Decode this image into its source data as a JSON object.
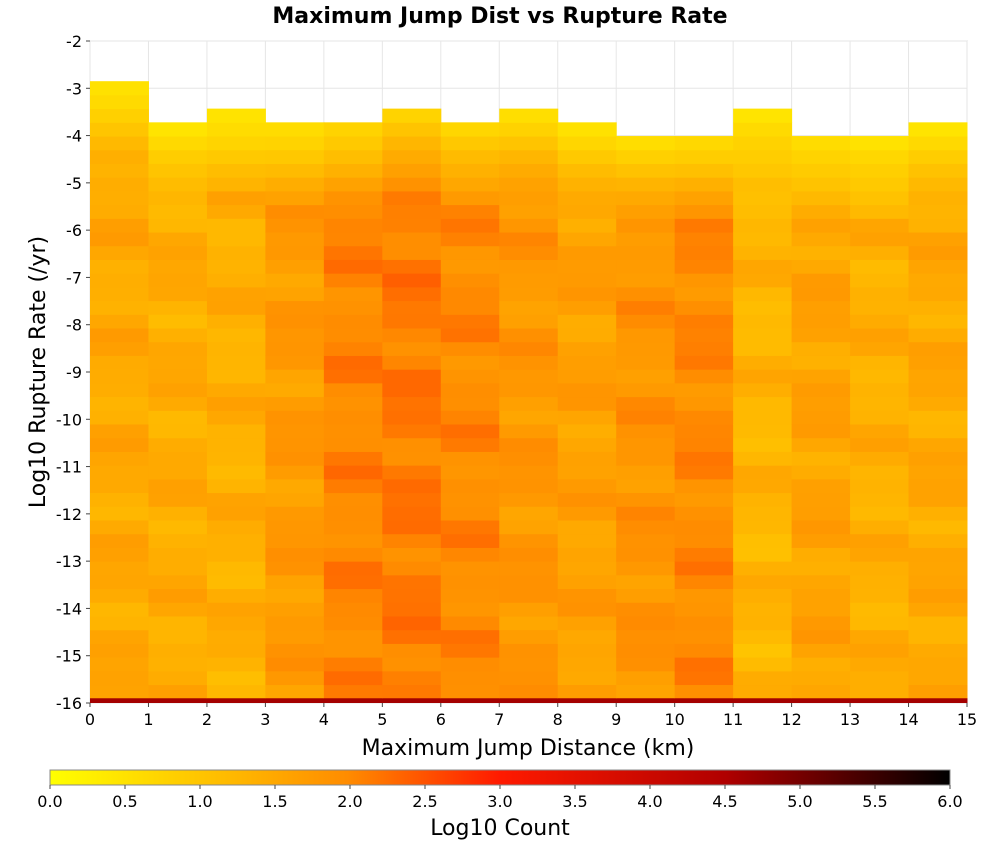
{
  "chart_data": {
    "type": "heatmap",
    "title": "Maximum Jump Dist vs Rupture Rate",
    "xlabel": "Maximum Jump Distance (km)",
    "ylabel": "Log10 Rupture Rate (/yr)",
    "xlim": [
      0,
      15
    ],
    "ylim": [
      -16,
      -2
    ],
    "x_ticks": [
      "0",
      "1",
      "2",
      "3",
      "4",
      "5",
      "6",
      "7",
      "8",
      "9",
      "10",
      "11",
      "12",
      "13",
      "14",
      "15"
    ],
    "y_ticks": [
      "-2",
      "-3",
      "-4",
      "-5",
      "-6",
      "-7",
      "-8",
      "-9",
      "-10",
      "-11",
      "-12",
      "-13",
      "-14",
      "-15",
      "-16"
    ],
    "x_bin_width": 1,
    "y_bin_start": -15.9,
    "y_bin_width": 0.29,
    "y_bins": 47,
    "column_top_bins": [
      45,
      42,
      43,
      42,
      42,
      43,
      42,
      43,
      42,
      41,
      41,
      43,
      41,
      41,
      42
    ],
    "column_base_level": [
      1.5,
      1.45,
      1.4,
      1.75,
      2.05,
      2.15,
      2.0,
      1.8,
      1.65,
      1.85,
      2.0,
      1.3,
      1.6,
      1.4,
      1.5
    ],
    "bottom_row_level": 4.6,
    "colorbar": {
      "label": "Log10 Count",
      "min": 0.0,
      "max": 6.0,
      "ticks": [
        "0.0",
        "0.5",
        "1.0",
        "1.5",
        "2.0",
        "2.5",
        "3.0",
        "3.5",
        "4.0",
        "4.5",
        "5.0",
        "5.5",
        "6.0"
      ],
      "colors": [
        "#ffff00",
        "#ff8c00",
        "#ff0000",
        "#b00000",
        "#000000"
      ]
    },
    "grid": true
  }
}
